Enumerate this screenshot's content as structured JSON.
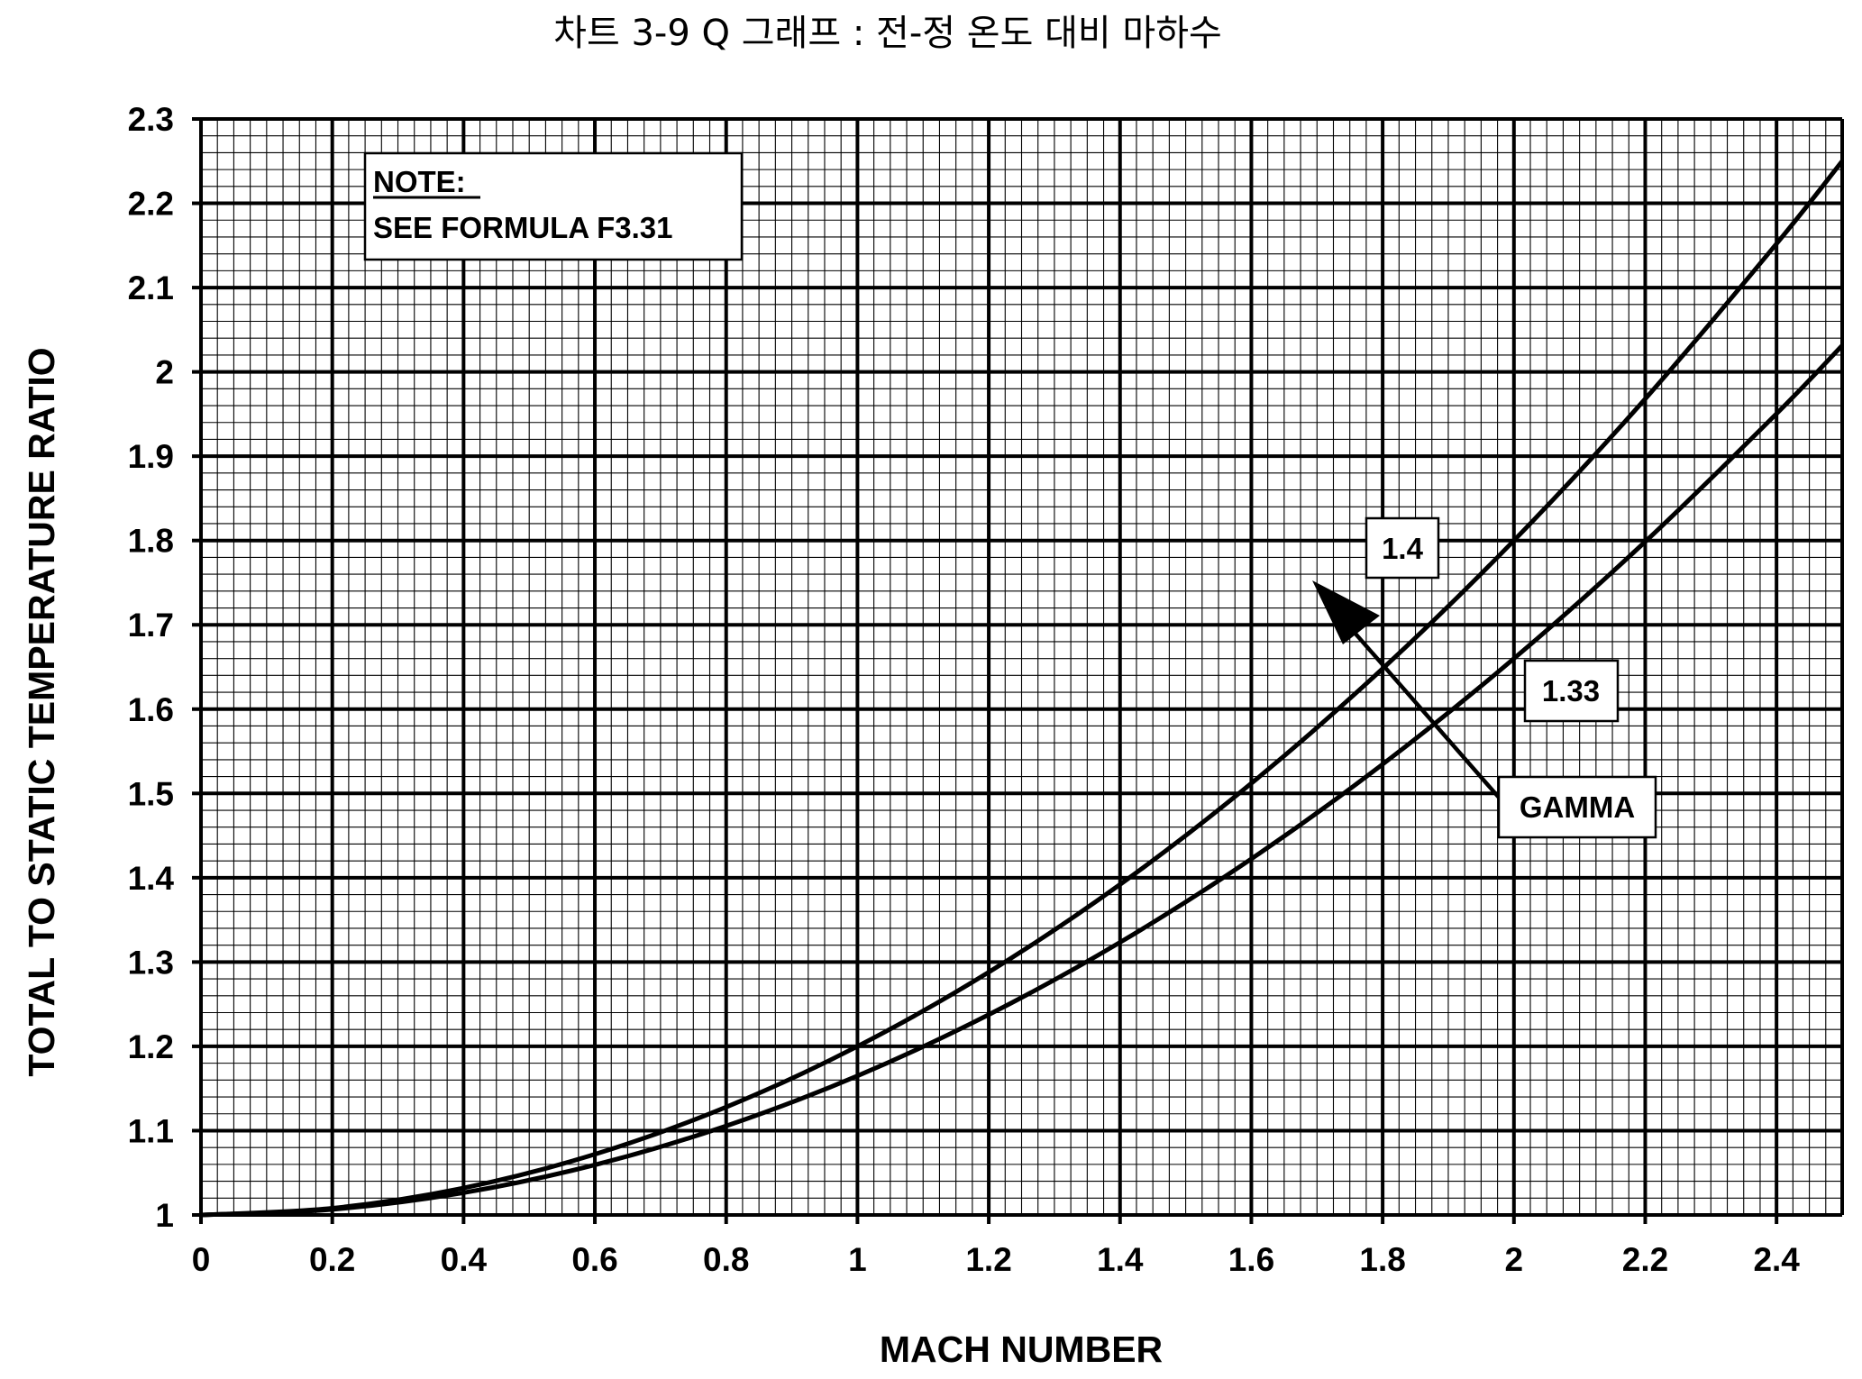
{
  "chart_data": {
    "type": "line",
    "title": "차트 3-9 Q 그래프 : 전-정 온도 대비 마하수",
    "xlabel": "MACH NUMBER",
    "ylabel": "TOTAL TO STATIC TEMPERATURE RATIO",
    "xlim": [
      0,
      2.5
    ],
    "ylim": [
      1,
      2.3
    ],
    "x_ticks": [
      "0",
      "0.2",
      "0.4",
      "0.6",
      "0.8",
      "1",
      "1.2",
      "1.4",
      "1.6",
      "1.8",
      "2",
      "2.2",
      "2.4"
    ],
    "y_ticks": [
      "1",
      "1.1",
      "1.2",
      "1.3",
      "1.4",
      "1.5",
      "1.6",
      "1.7",
      "1.8",
      "1.9",
      "2",
      "2.1",
      "2.2",
      "2.3"
    ],
    "grid": true,
    "x": [
      0,
      0.2,
      0.4,
      0.6,
      0.8,
      1.0,
      1.2,
      1.4,
      1.6,
      1.8,
      2.0,
      2.2,
      2.4,
      2.5
    ],
    "series": [
      {
        "name": "1.4",
        "values": [
          1.0,
          1.008,
          1.032,
          1.072,
          1.128,
          1.2,
          1.288,
          1.392,
          1.512,
          1.648,
          1.8,
          1.968,
          2.152,
          2.25
        ]
      },
      {
        "name": "1.33",
        "values": [
          1.0,
          1.0066,
          1.0264,
          1.0594,
          1.1056,
          1.165,
          1.2376,
          1.3234,
          1.4224,
          1.5346,
          1.66,
          1.7986,
          1.9504,
          2.0313
        ]
      }
    ],
    "annotations": {
      "note_heading": "NOTE:",
      "note_text": "SEE FORMULA F3.31",
      "curve_label_1": "1.4",
      "curve_label_2": "1.33",
      "gamma_label": "GAMMA"
    }
  }
}
